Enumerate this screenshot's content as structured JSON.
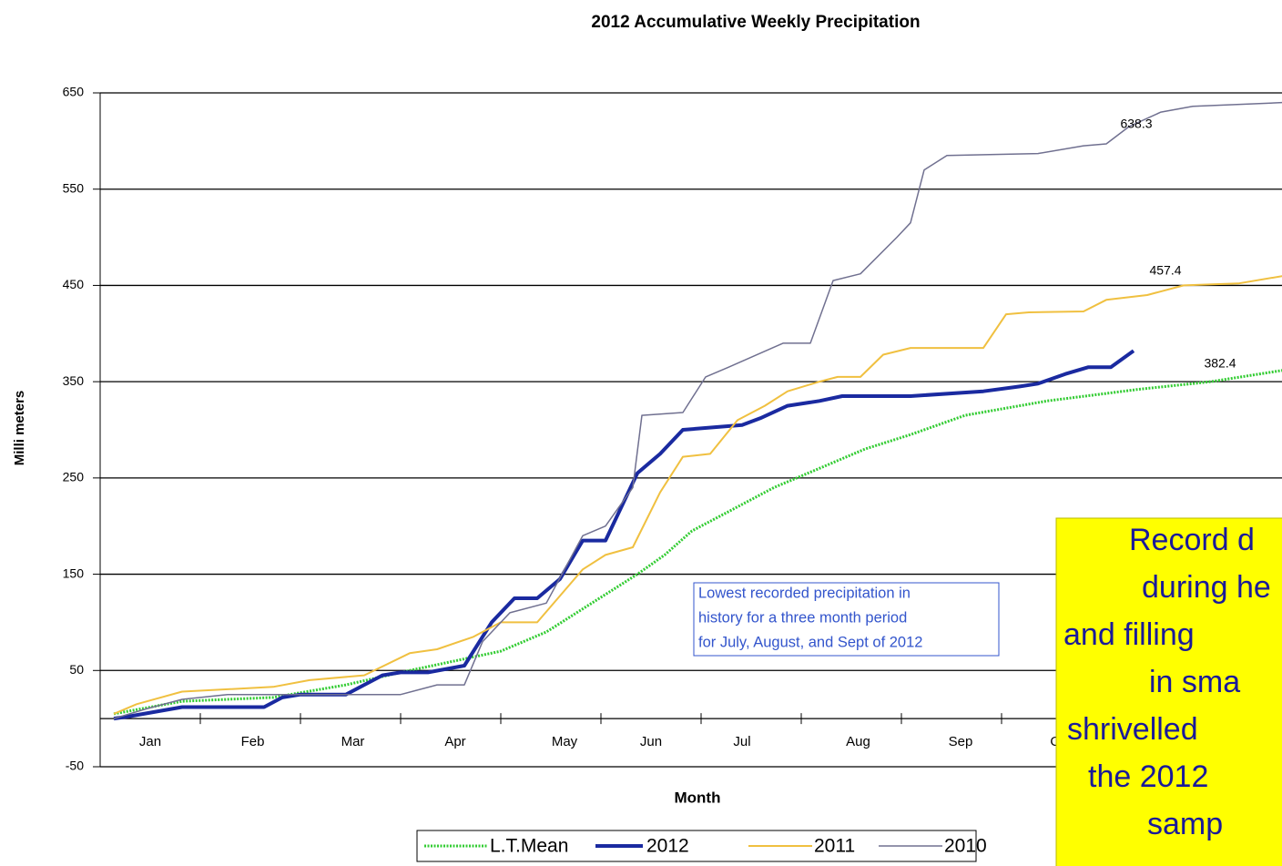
{
  "chart_data": {
    "type": "line",
    "title": "2012 Accumulative Weekly Precipitation",
    "y_label": "Milli meters",
    "x_label": "Month",
    "xlim": [
      0,
      52
    ],
    "ylim": [
      -50,
      650
    ],
    "yticks": [
      -50,
      50,
      150,
      250,
      350,
      450,
      550,
      650
    ],
    "xticks": [
      {
        "value": 2.2,
        "label": "Jan"
      },
      {
        "value": 6.7,
        "label": "Feb"
      },
      {
        "value": 11.1,
        "label": "Mar"
      },
      {
        "value": 15.6,
        "label": "Apr"
      },
      {
        "value": 20.4,
        "label": "May"
      },
      {
        "value": 24.2,
        "label": "Jun"
      },
      {
        "value": 28.2,
        "label": "Jul"
      },
      {
        "value": 33.3,
        "label": "Aug"
      },
      {
        "value": 37.8,
        "label": "Sep"
      },
      {
        "value": 42.2,
        "label": "Oct"
      }
    ],
    "grid": true,
    "legend": "bottom",
    "series": [
      {
        "name": "L.T.Mean",
        "color": "#33cc33",
        "dash": true,
        "width": 3,
        "x": [
          0.6,
          3.6,
          7.6,
          10.8,
          13.2,
          15.6,
          17.6,
          19.6,
          21.6,
          23.6,
          24.8,
          26,
          27.6,
          29.6,
          31.6,
          33.6,
          35.6,
          38,
          41.6,
          45.6,
          48.8,
          52
        ],
        "values": [
          5,
          18,
          22,
          35,
          48,
          60,
          70,
          90,
          120,
          150,
          170,
          195,
          215,
          240,
          260,
          280,
          295,
          315,
          330,
          342,
          350,
          362
        ]
      },
      {
        "name": "2012",
        "color": "#1a2aa0",
        "width": 4,
        "x": [
          0.6,
          1.2,
          3.6,
          7.2,
          8,
          8.8,
          10.8,
          11.6,
          12.4,
          13.2,
          14.4,
          16,
          17.2,
          18.2,
          19.2,
          20.2,
          21.2,
          22.2,
          23.6,
          24.6,
          25.6,
          27.2,
          28.2,
          29,
          30.2,
          31.6,
          32.6,
          35.6,
          38.8,
          40.4,
          41.2,
          42.4,
          43.4,
          44.4,
          45.4
        ],
        "values": [
          0,
          2,
          12,
          12,
          22,
          25,
          25,
          35,
          45,
          48,
          48,
          55,
          100,
          125,
          125,
          145,
          185,
          185,
          255,
          275,
          300,
          303,
          305,
          312,
          325,
          330,
          335,
          335,
          340,
          345,
          348,
          358,
          365,
          365,
          382
        ]
      },
      {
        "name": "2011",
        "color": "#f0c040",
        "width": 2,
        "x": [
          0.6,
          1.6,
          3.6,
          7.6,
          9.2,
          11.6,
          13.6,
          14.8,
          16.4,
          17.6,
          19.2,
          21.2,
          22.2,
          23.4,
          24.6,
          25.6,
          26.8,
          28,
          29.2,
          30.2,
          31.6,
          32.4,
          33.4,
          34.4,
          35.6,
          38.8,
          39.8,
          40.8,
          43.2,
          44.2,
          46,
          47.6,
          50,
          52
        ],
        "values": [
          5,
          15,
          28,
          33,
          40,
          45,
          68,
          72,
          85,
          100,
          100,
          155,
          170,
          178,
          235,
          272,
          275,
          310,
          325,
          340,
          350,
          355,
          355,
          378,
          385,
          385,
          420,
          422,
          423,
          435,
          440,
          450,
          452,
          460
        ]
      },
      {
        "name": "2010",
        "color": "#707090",
        "width": 1.5,
        "x": [
          0.6,
          2,
          3.6,
          5.6,
          13.2,
          14.8,
          16,
          16.8,
          18,
          19.6,
          21.2,
          22.2,
          23.4,
          23.8,
          25.6,
          26.6,
          27.6,
          30,
          31.2,
          32.2,
          33.4,
          35,
          35.6,
          36.2,
          37.2,
          41.2,
          43.2,
          44.2,
          45.2,
          46.6,
          48,
          52
        ],
        "values": [
          0,
          10,
          20,
          25,
          25,
          35,
          35,
          80,
          110,
          120,
          190,
          200,
          240,
          315,
          318,
          355,
          365,
          390,
          390,
          455,
          462,
          500,
          515,
          570,
          585,
          587,
          595,
          597,
          615,
          630,
          636,
          640
        ]
      }
    ],
    "annotations": [
      "638.3",
      "457.4",
      "382.4"
    ],
    "callout": [
      "Lowest recorded precipitation in",
      "history for a three month period",
      "for July, August, and Sept of 2012"
    ],
    "note": [
      "Record d",
      "during he",
      "and filling",
      "in sma",
      "shrivelled",
      "the 2012",
      "samp"
    ]
  }
}
